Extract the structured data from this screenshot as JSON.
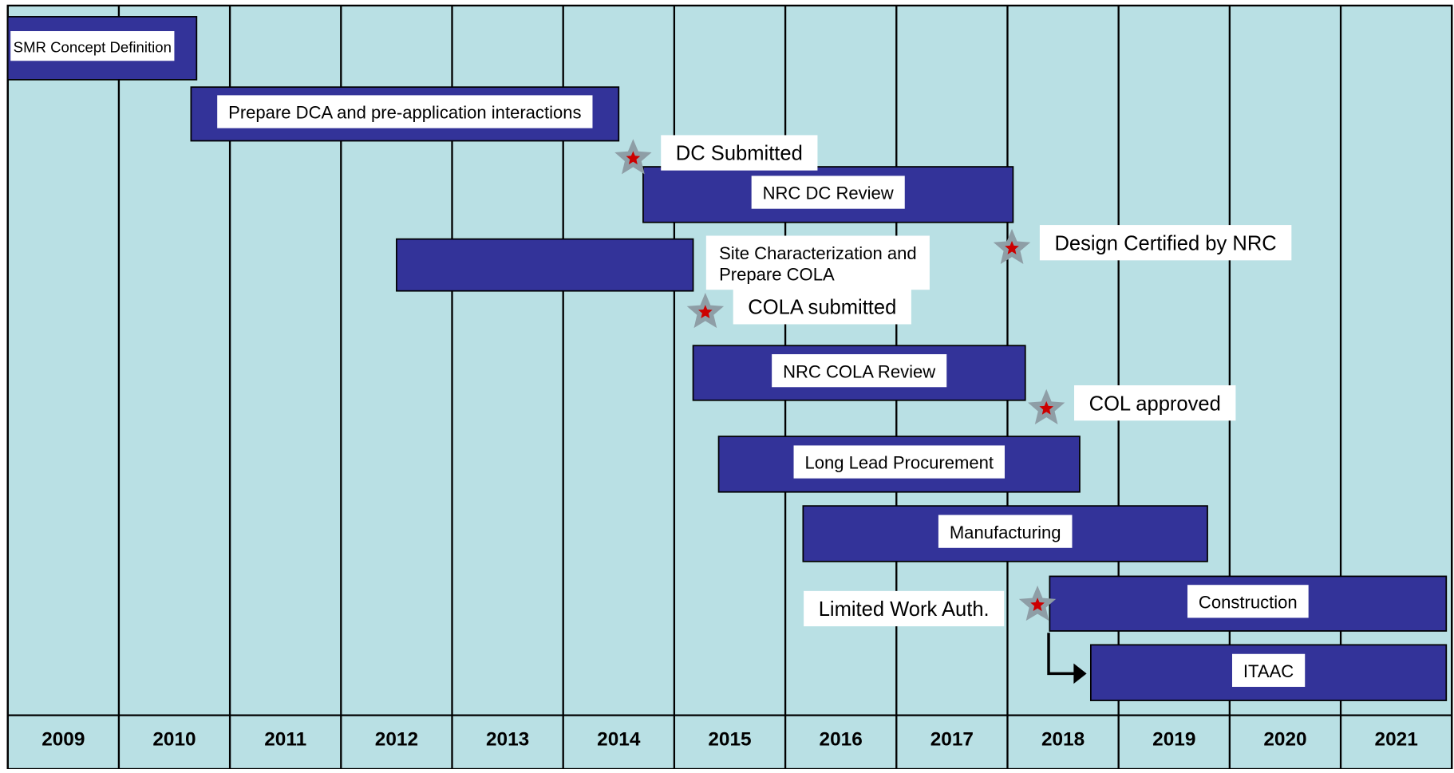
{
  "chart_data": {
    "type": "gantt",
    "categories": [
      "2009",
      "2010",
      "2011",
      "2012",
      "2013",
      "2014",
      "2015",
      "2016",
      "2017",
      "2018",
      "2019",
      "2020",
      "2021"
    ],
    "xlim": [
      2009,
      2022
    ],
    "xticks": [
      2009,
      2010,
      2011,
      2012,
      2013,
      2014,
      2015,
      2016,
      2017,
      2018,
      2019,
      2020,
      2021,
      2022
    ],
    "grid": true,
    "color": "#333399",
    "background": "#b9e0e4",
    "tasks": [
      {
        "label": "SMR Concept Definition",
        "start": 2009.0,
        "end": 2010.7
      },
      {
        "label": "Prepare DCA and pre-application interactions",
        "start": 2010.65,
        "end": 2014.5
      },
      {
        "label": "NRC DC Review",
        "start": 2014.72,
        "end": 2018.05
      },
      {
        "label": [
          "Site Characterization and",
          "Prepare COLA"
        ],
        "start": 2012.5,
        "end": 2015.17
      },
      {
        "label": "NRC COLA Review",
        "start": 2015.17,
        "end": 2018.16
      },
      {
        "label": "Long Lead Procurement",
        "start": 2015.4,
        "end": 2018.65
      },
      {
        "label": "Manufacturing",
        "start": 2016.16,
        "end": 2019.8
      },
      {
        "label": "Construction",
        "start": 2018.38,
        "end": 2021.95
      },
      {
        "label": "ITAAC",
        "start": 2018.75,
        "end": 2021.95
      }
    ],
    "milestones": [
      {
        "label": "DC Submitted",
        "x": 2014.63
      },
      {
        "label": "Design Certified by NRC",
        "x": 2018.04
      },
      {
        "label": "COLA submitted",
        "x": 2015.28
      },
      {
        "label": "COL approved",
        "x": 2018.35
      },
      {
        "label": "Limited Work Auth.",
        "x": 2018.27
      }
    ]
  }
}
